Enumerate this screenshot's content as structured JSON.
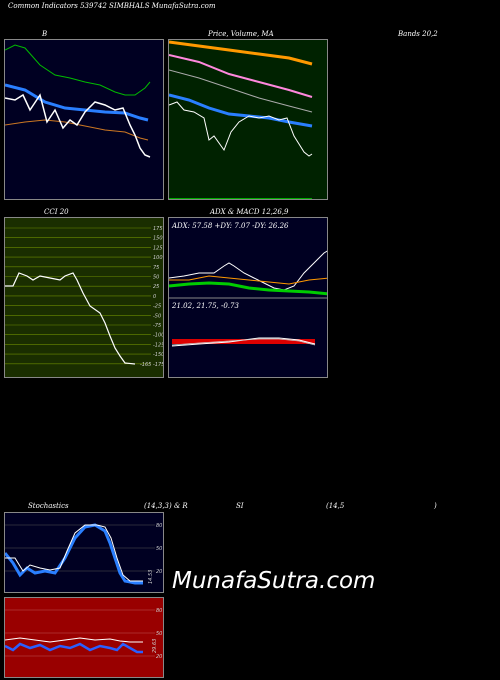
{
  "header": {
    "title": "Common Indicators 539742 SIMBHALS MunafaSutra.com"
  },
  "panels": {
    "b": {
      "label": "B"
    },
    "price_ma": {
      "label": "Price, Volume, MA"
    },
    "bands": {
      "label": "Bands 20,2"
    },
    "cci": {
      "label": "CCI 20",
      "value_label": "-165",
      "ticks": [
        "175",
        "150",
        "125",
        "100",
        "75",
        "50",
        "25",
        "0",
        "-25",
        "-50",
        "-75",
        "-100",
        "-125",
        "-150",
        "-175"
      ]
    },
    "adx_macd": {
      "label": "ADX & MACD 12,26,9",
      "adx_text": "ADX: 57.58  +DY: 7.07 -DY: 26.26",
      "macd_text": "21.02,  21.75,  -0.73"
    },
    "stochastics": {
      "label": "Stochastics",
      "params": "(14,3,3) & R",
      "si_label": "SI",
      "rsi_params": "(14,5",
      "rsi_close": ")",
      "stoch_value": "14.53",
      "stoch_ticks": [
        "80",
        "50",
        "20"
      ],
      "rsi_value": "29.63",
      "rsi_ticks": [
        "80",
        "50",
        "20"
      ]
    }
  },
  "watermark": "MunafaSutra.com",
  "colors": {
    "navy": "#000022",
    "green_bg": "#002200",
    "olive_bg": "#1a2e00",
    "rsi_bg": "#990000",
    "blue": "#2a7fff",
    "orange": "#ff9900",
    "pink": "#ff88dd",
    "green": "#00cc00"
  }
}
